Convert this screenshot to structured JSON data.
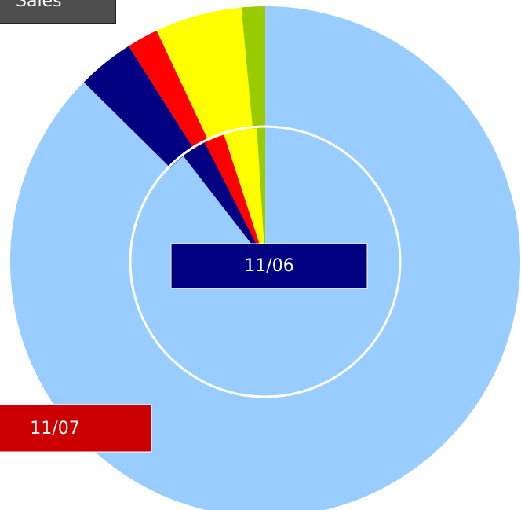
{
  "chart_data": {
    "type": "doughnut",
    "title": "Sales",
    "colors": [
      "#99cc00",
      "#ffff00",
      "#ff0000",
      "#000080",
      "#99ccff"
    ],
    "series": [
      {
        "name": "11/06",
        "color": "#000080",
        "values": [
          1,
          4,
          2.5,
          3,
          89.5
        ]
      },
      {
        "name": "11/07",
        "color": "#cc0000",
        "values": [
          1.5,
          5.5,
          2,
          3.6,
          87.4
        ]
      }
    ]
  }
}
